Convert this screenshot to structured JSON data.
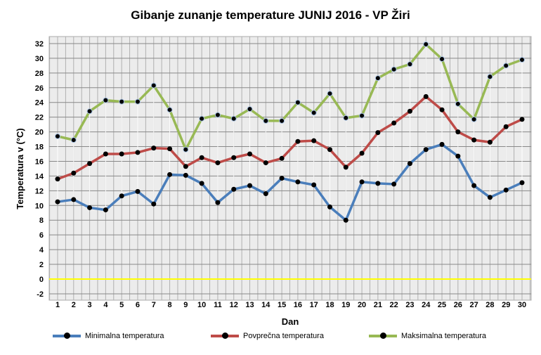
{
  "chart_data": {
    "type": "line",
    "title": "Gibanje zunanje temperature JUNIJ 2016 - VP Žiri",
    "xlabel": "Dan",
    "ylabel": "Temperatura v (°C)",
    "ylim": [
      -2,
      32
    ],
    "yticks": [
      -2,
      0,
      2,
      4,
      6,
      8,
      10,
      12,
      14,
      16,
      18,
      20,
      22,
      24,
      26,
      28,
      30,
      32
    ],
    "categories": [
      1,
      2,
      3,
      4,
      5,
      6,
      7,
      8,
      9,
      10,
      11,
      12,
      13,
      14,
      15,
      16,
      17,
      18,
      19,
      20,
      21,
      22,
      23,
      24,
      25,
      26,
      27,
      28,
      29,
      30
    ],
    "grid": true,
    "legend": "bottom",
    "series": [
      {
        "name": "Minimalna temperatura",
        "color": "#4a7ebb",
        "values": [
          10.5,
          10.8,
          9.7,
          9.4,
          11.3,
          11.9,
          10.2,
          14.2,
          14.1,
          13.0,
          10.4,
          12.2,
          12.7,
          11.6,
          13.7,
          13.2,
          12.8,
          9.8,
          8.0,
          13.2,
          13.0,
          12.9,
          15.7,
          17.6,
          18.3,
          16.7,
          12.7,
          11.1,
          12.1,
          13.1
        ]
      },
      {
        "name": "Povprečna temperatura",
        "color": "#be4b48",
        "values": [
          13.6,
          14.4,
          15.7,
          17.0,
          17.0,
          17.2,
          17.8,
          17.7,
          15.3,
          16.5,
          15.8,
          16.5,
          17.0,
          15.8,
          16.4,
          18.7,
          18.8,
          17.6,
          15.2,
          17.1,
          19.9,
          21.2,
          22.8,
          24.8,
          23.0,
          20.0,
          18.9,
          18.6,
          20.7,
          21.7
        ]
      },
      {
        "name": "Maksimalna temperatura",
        "color": "#98b954",
        "values": [
          19.4,
          18.9,
          22.8,
          24.3,
          24.1,
          24.1,
          26.3,
          23.0,
          17.6,
          21.8,
          22.3,
          21.8,
          23.1,
          21.5,
          21.5,
          24.0,
          22.6,
          25.2,
          21.9,
          22.2,
          27.3,
          28.5,
          29.2,
          31.9,
          29.9,
          23.8,
          21.7,
          27.5,
          29.0,
          29.8
        ]
      }
    ],
    "zero_line_color": "#ffff00"
  }
}
